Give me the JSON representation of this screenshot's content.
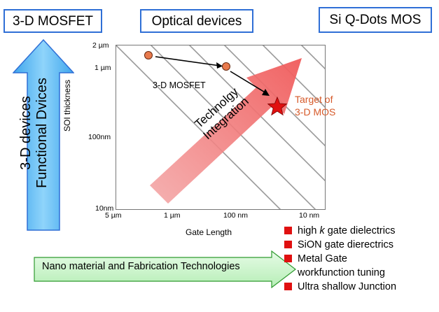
{
  "boxes": {
    "mosfet": "3-D MOSFET",
    "optical": "Optical devices",
    "qdots": "Si Q-Dots MOS"
  },
  "left_arrow": {
    "line1": "3-D devices",
    "line2": "Functional Dvices"
  },
  "bottom_arrow": {
    "label": "Nano material and Fabrication Technologies"
  },
  "plot": {
    "ylabel": "SOI thickness",
    "xlabel": "Gate Length",
    "y_ticks": [
      "2 µm",
      "1 µm",
      "100nm",
      "10nm"
    ],
    "x_ticks": [
      "5 µm",
      "1 µm",
      "100 nm",
      "10 nm"
    ],
    "point_label": "3-D MOSFET",
    "big_arrow_line1": "Technolgy",
    "big_arrow_line2": "Integration",
    "target_line1": "Target of",
    "target_line2": "3-D MOS"
  },
  "legend": {
    "item1_pre": "high ",
    "item1_k": "k",
    "item1_post": " gate dielectrics",
    "item2": "SiON gate dierectrics",
    "item3_line1": "Metal Gate",
    "item3_line2": "workfunction tuning",
    "item4": "Ultra shallow Junction"
  },
  "colors": {
    "box_border": "#2f6fd6",
    "left_arrow_fill": "#5cb6f0",
    "bottom_arrow_fill": "#c9f5c9",
    "big_arrow": "#f06a6a",
    "point_fill": "#e87a4d",
    "star": "#e01010",
    "legend_square": "#e01010",
    "target_text": "#d65a2a"
  }
}
